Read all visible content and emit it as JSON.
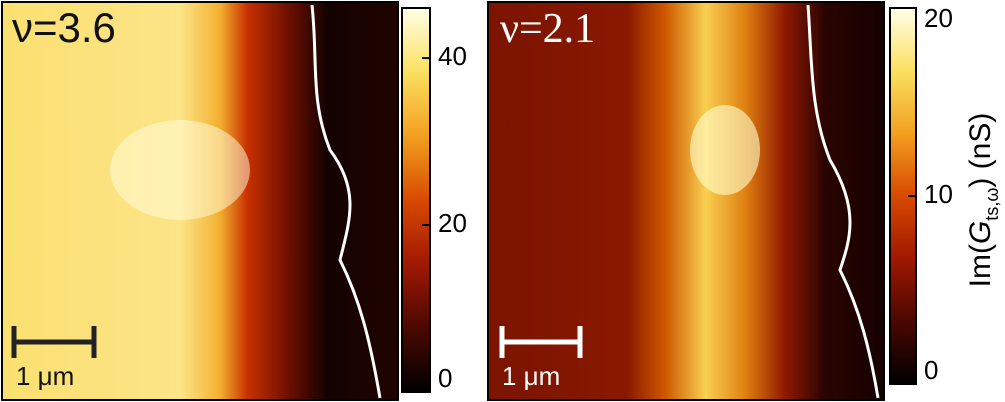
{
  "chart_data": [
    {
      "type": "image",
      "label": "ν=3.6",
      "scalebar_label": "1 μm",
      "clim": [
        0,
        46
      ],
      "cticks": [
        0,
        20,
        40
      ],
      "colormap": [
        "#000000",
        "#4a0800",
        "#a01800",
        "#d84a00",
        "#f2a020",
        "#fbe060",
        "#ffffe8"
      ]
    },
    {
      "type": "image",
      "label": "ν=2.1",
      "scalebar_label": "1 μm",
      "clim": [
        0,
        20
      ],
      "cticks": [
        0,
        10,
        20
      ],
      "colormap": [
        "#000000",
        "#4a0800",
        "#a01800",
        "#d84a00",
        "#f2a020",
        "#fbe060",
        "#ffffe8"
      ],
      "colorbar_label": {
        "prefix": "Im(",
        "var": "G",
        "sub": "ts,ω",
        "suffix": ") (nS)"
      }
    }
  ]
}
